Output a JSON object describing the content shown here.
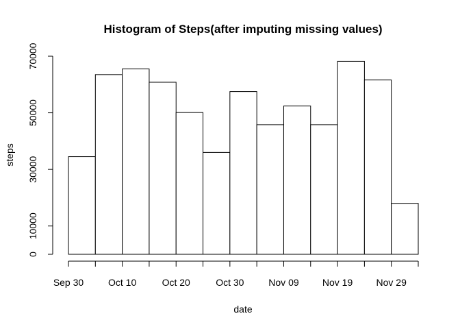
{
  "chart_data": {
    "type": "bar",
    "title": "Histogram of Steps(after imputing missing values)",
    "xlabel": "date",
    "ylabel": "steps",
    "ylim": [
      0,
      70000
    ],
    "yticks": [
      0,
      10000,
      30000,
      50000,
      70000
    ],
    "ytick_labels": [
      "0",
      "10000",
      "30000",
      "50000",
      "70000"
    ],
    "x_tick_labels": [
      "Sep 30",
      "Oct 10",
      "Oct 20",
      "Oct 30",
      "Nov 09",
      "Nov 19",
      "Nov 29"
    ],
    "bins": [
      {
        "start": "Sep 30",
        "end": "Oct 05",
        "value": 34500
      },
      {
        "start": "Oct 05",
        "end": "Oct 10",
        "value": 63500
      },
      {
        "start": "Oct 10",
        "end": "Oct 15",
        "value": 65500
      },
      {
        "start": "Oct 15",
        "end": "Oct 20",
        "value": 60800
      },
      {
        "start": "Oct 20",
        "end": "Oct 25",
        "value": 50100
      },
      {
        "start": "Oct 25",
        "end": "Oct 30",
        "value": 36000
      },
      {
        "start": "Oct 30",
        "end": "Nov 04",
        "value": 57500
      },
      {
        "start": "Nov 04",
        "end": "Nov 09",
        "value": 45800
      },
      {
        "start": "Nov 09",
        "end": "Nov 14",
        "value": 52400
      },
      {
        "start": "Nov 14",
        "end": "Nov 19",
        "value": 45800
      },
      {
        "start": "Nov 19",
        "end": "Nov 24",
        "value": 68200
      },
      {
        "start": "Nov 24",
        "end": "Nov 29",
        "value": 61600
      },
      {
        "start": "Nov 29",
        "end": "Dec 04",
        "value": 18000
      }
    ],
    "colors": {
      "bar_fill": "#ffffff",
      "bar_stroke": "#000000"
    },
    "grid": false
  }
}
